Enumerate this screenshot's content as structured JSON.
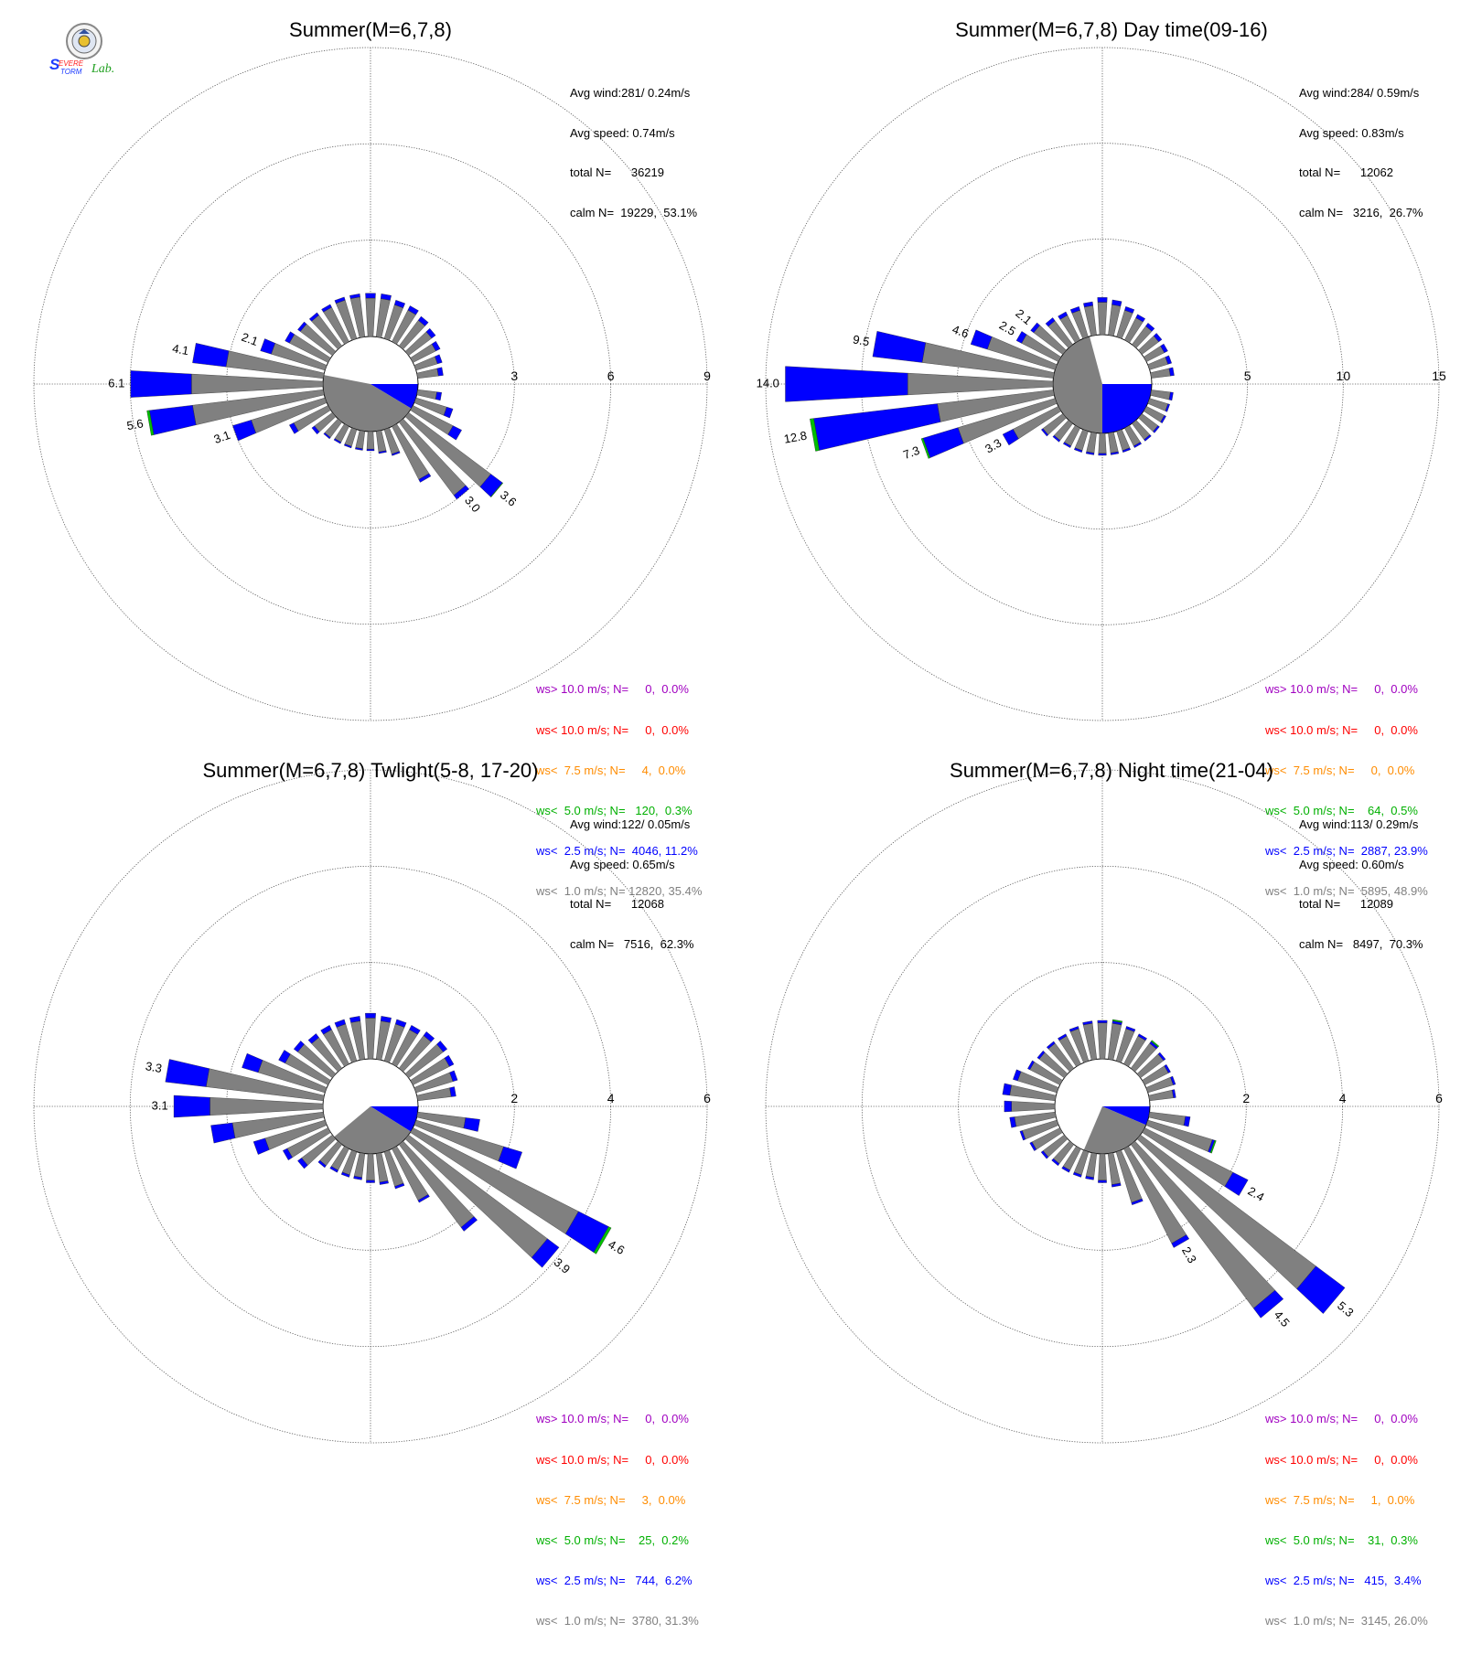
{
  "logo": {
    "text_1": "Severe",
    "text_2": "Storm",
    "text_3": "Lab."
  },
  "colors": {
    "gray": "#808080",
    "blue": "#0000ff",
    "green": "#00c000",
    "orange": "#ff8c00",
    "red": "#ff0000",
    "purple": "#a000c0"
  },
  "chart_data": [
    {
      "type": "wind_rose",
      "title": "Summer(M=6,7,8)",
      "rmax": 9,
      "ring_labels": [
        "3",
        "6",
        "9"
      ],
      "stats": [
        "Avg wind:281/ 0.24m/s",
        "Avg speed: 0.74m/s",
        "total N=      36219",
        "calm N=  19229,  53.1%"
      ],
      "legend": [
        "ws> 10.0 m/s; N=     0,  0.0%",
        "ws< 10.0 m/s; N=     0,  0.0%",
        "ws<  7.5 m/s; N=     4,  0.0%",
        "ws<  5.0 m/s; N=   120,  0.3%",
        "ws<  2.5 m/s; N=  4046, 11.2%",
        "ws<  1.0 m/s; N= 12820, 35.4%"
      ],
      "calm_segments": [
        {
          "from": 90,
          "to": 121,
          "color": "blue"
        },
        {
          "from": 121,
          "to": 281,
          "color": "gray"
        }
      ],
      "bars": [
        {
          "dir": 0,
          "gray": 1.2,
          "blue": 0.15
        },
        {
          "dir": 10,
          "gray": 1.2,
          "blue": 0.15
        },
        {
          "dir": 20,
          "gray": 1.1,
          "blue": 0.15
        },
        {
          "dir": 30,
          "gray": 1.1,
          "blue": 0.15
        },
        {
          "dir": 40,
          "gray": 1.0,
          "blue": 0.15
        },
        {
          "dir": 50,
          "gray": 0.9,
          "blue": 0.15
        },
        {
          "dir": 60,
          "gray": 0.8,
          "blue": 0.15
        },
        {
          "dir": 70,
          "gray": 0.7,
          "blue": 0.15
        },
        {
          "dir": 80,
          "gray": 0.65,
          "blue": 0.15
        },
        {
          "dir": 100,
          "gray": 0.6,
          "blue": 0.15
        },
        {
          "dir": 110,
          "gray": 1.0,
          "blue": 0.2
        },
        {
          "dir": 120,
          "gray": 1.4,
          "blue": 0.3
        },
        {
          "dir": 130,
          "gray": 3.2,
          "blue": 0.45,
          "green": 0.02,
          "label": "3.6"
        },
        {
          "dir": 140,
          "gray": 2.85,
          "blue": 0.15,
          "label": "3.0"
        },
        {
          "dir": 150,
          "gray": 1.85,
          "blue": 0.1
        },
        {
          "dir": 160,
          "gray": 0.8,
          "blue": 0.05
        },
        {
          "dir": 170,
          "gray": 0.65,
          "blue": 0.05
        },
        {
          "dir": 180,
          "gray": 0.55,
          "blue": 0.05
        },
        {
          "dir": 190,
          "gray": 0.55,
          "blue": 0.05
        },
        {
          "dir": 200,
          "gray": 0.55,
          "blue": 0.05
        },
        {
          "dir": 210,
          "gray": 0.55,
          "blue": 0.05
        },
        {
          "dir": 220,
          "gray": 0.6,
          "blue": 0.05
        },
        {
          "dir": 230,
          "gray": 0.7,
          "blue": 0.1
        },
        {
          "dir": 240,
          "gray": 1.2,
          "blue": 0.15
        },
        {
          "dir": 250,
          "gray": 2.4,
          "blue": 0.6,
          "label": "3.1"
        },
        {
          "dir": 260,
          "gray": 4.1,
          "blue": 1.35,
          "green": 0.08,
          "label": "5.6"
        },
        {
          "dir": 270,
          "gray": 4.1,
          "blue": 1.9,
          "label": "6.1"
        },
        {
          "dir": 280,
          "gray": 3.05,
          "blue": 1.05,
          "label": "4.1"
        },
        {
          "dir": 290,
          "gray": 1.75,
          "blue": 0.35,
          "label": "2.1"
        },
        {
          "dir": 300,
          "gray": 1.35,
          "blue": 0.15
        },
        {
          "dir": 310,
          "gray": 1.25,
          "blue": 0.1
        },
        {
          "dir": 320,
          "gray": 1.2,
          "blue": 0.1
        },
        {
          "dir": 330,
          "gray": 1.2,
          "blue": 0.1
        },
        {
          "dir": 340,
          "gray": 1.25,
          "blue": 0.1
        },
        {
          "dir": 350,
          "gray": 1.25,
          "blue": 0.1
        }
      ]
    },
    {
      "type": "wind_rose",
      "title": "Summer(M=6,7,8) Day time(09-16)",
      "rmax": 15,
      "ring_labels": [
        "5",
        "10",
        "15"
      ],
      "stats": [
        "Avg wind:284/ 0.59m/s",
        "Avg speed: 0.83m/s",
        "total N=      12062",
        "calm N=   3216,  26.7%"
      ],
      "legend": [
        "ws> 10.0 m/s; N=     0,  0.0%",
        "ws< 10.0 m/s; N=     0,  0.0%",
        "ws<  7.5 m/s; N=     0,  0.0%",
        "ws<  5.0 m/s; N=    64,  0.5%",
        "ws<  2.5 m/s; N=  2887, 23.9%",
        "ws<  1.0 m/s; N=  5895, 48.9%"
      ],
      "calm_segments": [
        {
          "from": 90,
          "to": 180,
          "color": "blue"
        },
        {
          "from": 180,
          "to": 345,
          "color": "gray"
        }
      ],
      "bars": [
        {
          "dir": 0,
          "gray": 1.7,
          "blue": 0.25
        },
        {
          "dir": 10,
          "gray": 1.6,
          "blue": 0.25
        },
        {
          "dir": 20,
          "gray": 1.45,
          "blue": 0.2
        },
        {
          "dir": 30,
          "gray": 1.3,
          "blue": 0.2
        },
        {
          "dir": 40,
          "gray": 1.2,
          "blue": 0.2
        },
        {
          "dir": 50,
          "gray": 1.1,
          "blue": 0.2
        },
        {
          "dir": 60,
          "gray": 1.05,
          "blue": 0.2
        },
        {
          "dir": 70,
          "gray": 1.0,
          "blue": 0.2
        },
        {
          "dir": 80,
          "gray": 1.0,
          "blue": 0.2
        },
        {
          "dir": 100,
          "gray": 1.0,
          "blue": 0.15
        },
        {
          "dir": 110,
          "gray": 1.0,
          "blue": 0.1
        },
        {
          "dir": 120,
          "gray": 1.05,
          "blue": 0.1
        },
        {
          "dir": 130,
          "gray": 1.05,
          "blue": 0.1
        },
        {
          "dir": 140,
          "gray": 1.05,
          "blue": 0.1
        },
        {
          "dir": 150,
          "gray": 1.05,
          "blue": 0.1
        },
        {
          "dir": 160,
          "gray": 1.05,
          "blue": 0.1
        },
        {
          "dir": 170,
          "gray": 1.05,
          "blue": 0.1
        },
        {
          "dir": 180,
          "gray": 1.05,
          "blue": 0.1
        },
        {
          "dir": 190,
          "gray": 1.05,
          "blue": 0.1
        },
        {
          "dir": 200,
          "gray": 1.05,
          "blue": 0.1
        },
        {
          "dir": 210,
          "gray": 1.05,
          "blue": 0.1
        },
        {
          "dir": 220,
          "gray": 1.1,
          "blue": 0.1
        },
        {
          "dir": 230,
          "gray": 1.3,
          "blue": 0.1
        },
        {
          "dir": 240,
          "gray": 2.65,
          "blue": 0.6,
          "label": "3.3"
        },
        {
          "dir": 250,
          "gray": 5.3,
          "blue": 1.9,
          "green": 0.1,
          "label": "7.3"
        },
        {
          "dir": 260,
          "gray": 6.1,
          "blue": 6.5,
          "green": 0.2,
          "label": "12.8"
        },
        {
          "dir": 270,
          "gray": 7.6,
          "blue": 6.4,
          "label": "14.0"
        },
        {
          "dir": 280,
          "gray": 6.9,
          "blue": 2.6,
          "label": "9.5"
        },
        {
          "dir": 290,
          "gray": 3.7,
          "blue": 0.9,
          "label": "4.6"
        },
        {
          "dir": 300,
          "gray": 2.15,
          "blue": 0.3,
          "label": "2.5"
        },
        {
          "dir": 310,
          "gray": 1.9,
          "blue": 0.2,
          "label": "2.1"
        },
        {
          "dir": 320,
          "gray": 1.55,
          "blue": 0.2
        },
        {
          "dir": 330,
          "gray": 1.45,
          "blue": 0.2
        },
        {
          "dir": 340,
          "gray": 1.45,
          "blue": 0.2
        },
        {
          "dir": 350,
          "gray": 1.55,
          "blue": 0.2
        }
      ]
    },
    {
      "type": "wind_rose",
      "title": "Summer(M=6,7,8) Twlight(5-8, 17-20)",
      "rmax": 6,
      "ring_labels": [
        "2",
        "4",
        "6"
      ],
      "stats": [
        "Avg wind:122/ 0.05m/s",
        "Avg speed: 0.65m/s",
        "total N=      12068",
        "calm N=   7516,  62.3%"
      ],
      "legend": [
        "ws> 10.0 m/s; N=     0,  0.0%",
        "ws< 10.0 m/s; N=     0,  0.0%",
        "ws<  7.5 m/s; N=     3,  0.0%",
        "ws<  5.0 m/s; N=    25,  0.2%",
        "ws<  2.5 m/s; N=   744,  6.2%",
        "ws<  1.0 m/s; N=  3780, 31.3%"
      ],
      "calm_segments": [
        {
          "from": 90,
          "to": 122,
          "color": "blue"
        },
        {
          "from": 122,
          "to": 230,
          "color": "gray"
        }
      ],
      "bars": [
        {
          "dir": 0,
          "gray": 0.85,
          "blue": 0.1
        },
        {
          "dir": 10,
          "gray": 0.8,
          "blue": 0.1
        },
        {
          "dir": 20,
          "gray": 0.8,
          "blue": 0.1
        },
        {
          "dir": 30,
          "gray": 0.8,
          "blue": 0.1
        },
        {
          "dir": 40,
          "gray": 0.85,
          "blue": 0.1
        },
        {
          "dir": 50,
          "gray": 0.9,
          "blue": 0.1
        },
        {
          "dir": 60,
          "gray": 0.85,
          "blue": 0.1
        },
        {
          "dir": 70,
          "gray": 0.8,
          "blue": 0.1
        },
        {
          "dir": 80,
          "gray": 0.7,
          "blue": 0.1
        },
        {
          "dir": 100,
          "gray": 1.0,
          "blue": 0.3
        },
        {
          "dir": 110,
          "gray": 1.9,
          "blue": 0.4
        },
        {
          "dir": 120,
          "gray": 3.85,
          "blue": 0.7,
          "green": 0.06,
          "label": "4.6"
        },
        {
          "dir": 130,
          "gray": 3.6,
          "blue": 0.3,
          "label": "3.9"
        },
        {
          "dir": 140,
          "gray": 2.15,
          "blue": 0.1
        },
        {
          "dir": 150,
          "gray": 1.2,
          "blue": 0.05
        },
        {
          "dir": 160,
          "gray": 0.75,
          "blue": 0.05
        },
        {
          "dir": 170,
          "gray": 0.6,
          "blue": 0.05
        },
        {
          "dir": 180,
          "gray": 0.55,
          "blue": 0.05
        },
        {
          "dir": 190,
          "gray": 0.5,
          "blue": 0.05
        },
        {
          "dir": 200,
          "gray": 0.5,
          "blue": 0.05
        },
        {
          "dir": 210,
          "gray": 0.5,
          "blue": 0.05
        },
        {
          "dir": 220,
          "gray": 0.55,
          "blue": 0.05
        },
        {
          "dir": 230,
          "gray": 0.8,
          "blue": 0.1
        },
        {
          "dir": 240,
          "gray": 0.95,
          "blue": 0.1
        },
        {
          "dir": 250,
          "gray": 1.3,
          "blue": 0.25
        },
        {
          "dir": 260,
          "gray": 1.9,
          "blue": 0.45
        },
        {
          "dir": 270,
          "gray": 2.35,
          "blue": 0.75,
          "label": "3.1"
        },
        {
          "dir": 280,
          "gray": 2.45,
          "blue": 0.85,
          "label": "3.3"
        },
        {
          "dir": 290,
          "gray": 1.45,
          "blue": 0.35
        },
        {
          "dir": 300,
          "gray": 1.0,
          "blue": 0.15
        },
        {
          "dir": 310,
          "gray": 0.9,
          "blue": 0.1
        },
        {
          "dir": 320,
          "gray": 0.8,
          "blue": 0.1
        },
        {
          "dir": 330,
          "gray": 0.8,
          "blue": 0.1
        },
        {
          "dir": 340,
          "gray": 0.8,
          "blue": 0.1
        },
        {
          "dir": 350,
          "gray": 0.8,
          "blue": 0.1
        }
      ]
    },
    {
      "type": "wind_rose",
      "title": "Summer(M=6,7,8) Night time(21-04)",
      "rmax": 6,
      "ring_labels": [
        "2",
        "4",
        "6"
      ],
      "stats": [
        "Avg wind:113/ 0.29m/s",
        "Avg speed: 0.60m/s",
        "total N=      12089",
        "calm N=   8497,  70.3%"
      ],
      "legend": [
        "ws> 10.0 m/s; N=     0,  0.0%",
        "ws< 10.0 m/s; N=     0,  0.0%",
        "ws<  7.5 m/s; N=     1,  0.0%",
        "ws<  5.0 m/s; N=    31,  0.3%",
        "ws<  2.5 m/s; N=   415,  3.4%",
        "ws<  1.0 m/s; N=  3145, 26.0%"
      ],
      "calm_segments": [
        {
          "from": 90,
          "to": 113,
          "color": "blue"
        },
        {
          "from": 113,
          "to": 203,
          "color": "gray"
        }
      ],
      "bars": [
        {
          "dir": 0,
          "gray": 0.75,
          "blue": 0.05
        },
        {
          "dir": 10,
          "gray": 0.75,
          "blue": 0.05,
          "green": 0.03
        },
        {
          "dir": 20,
          "gray": 0.7,
          "blue": 0.05
        },
        {
          "dir": 30,
          "gray": 0.65,
          "blue": 0.05
        },
        {
          "dir": 40,
          "gray": 0.65,
          "blue": 0.05,
          "green": 0.03
        },
        {
          "dir": 50,
          "gray": 0.6,
          "blue": 0.05
        },
        {
          "dir": 60,
          "gray": 0.55,
          "blue": 0.05
        },
        {
          "dir": 70,
          "gray": 0.55,
          "blue": 0.05
        },
        {
          "dir": 80,
          "gray": 0.5,
          "blue": 0.05
        },
        {
          "dir": 100,
          "gray": 0.75,
          "blue": 0.1
        },
        {
          "dir": 110,
          "gray": 1.4,
          "blue": 0.05,
          "green": 0.03
        },
        {
          "dir": 120,
          "gray": 2.05,
          "blue": 0.35,
          "label": "2.4"
        },
        {
          "dir": 130,
          "gray": 4.55,
          "blue": 0.75,
          "label": "5.3"
        },
        {
          "dir": 140,
          "gray": 4.25,
          "blue": 0.25,
          "label": "4.5"
        },
        {
          "dir": 150,
          "gray": 2.2,
          "blue": 0.1,
          "label": "2.3"
        },
        {
          "dir": 160,
          "gray": 1.1,
          "blue": 0.05
        },
        {
          "dir": 170,
          "gray": 0.65,
          "blue": 0.05
        },
        {
          "dir": 180,
          "gray": 0.55,
          "blue": 0.05
        },
        {
          "dir": 190,
          "gray": 0.5,
          "blue": 0.05
        },
        {
          "dir": 200,
          "gray": 0.5,
          "blue": 0.05
        },
        {
          "dir": 210,
          "gray": 0.5,
          "blue": 0.05
        },
        {
          "dir": 220,
          "gray": 0.5,
          "blue": 0.05
        },
        {
          "dir": 230,
          "gray": 0.55,
          "blue": 0.05
        },
        {
          "dir": 240,
          "gray": 0.65,
          "blue": 0.05
        },
        {
          "dir": 250,
          "gray": 0.75,
          "blue": 0.05
        },
        {
          "dir": 260,
          "gray": 0.85,
          "blue": 0.1
        },
        {
          "dir": 270,
          "gray": 0.9,
          "blue": 0.15
        },
        {
          "dir": 280,
          "gray": 0.95,
          "blue": 0.15
        },
        {
          "dir": 290,
          "gray": 0.85,
          "blue": 0.1
        },
        {
          "dir": 300,
          "gray": 0.7,
          "blue": 0.05
        },
        {
          "dir": 310,
          "gray": 0.65,
          "blue": 0.05
        },
        {
          "dir": 320,
          "gray": 0.65,
          "blue": 0.05
        },
        {
          "dir": 330,
          "gray": 0.65,
          "blue": 0.05
        },
        {
          "dir": 340,
          "gray": 0.7,
          "blue": 0.05
        },
        {
          "dir": 350,
          "gray": 0.75,
          "blue": 0.05
        }
      ]
    }
  ]
}
